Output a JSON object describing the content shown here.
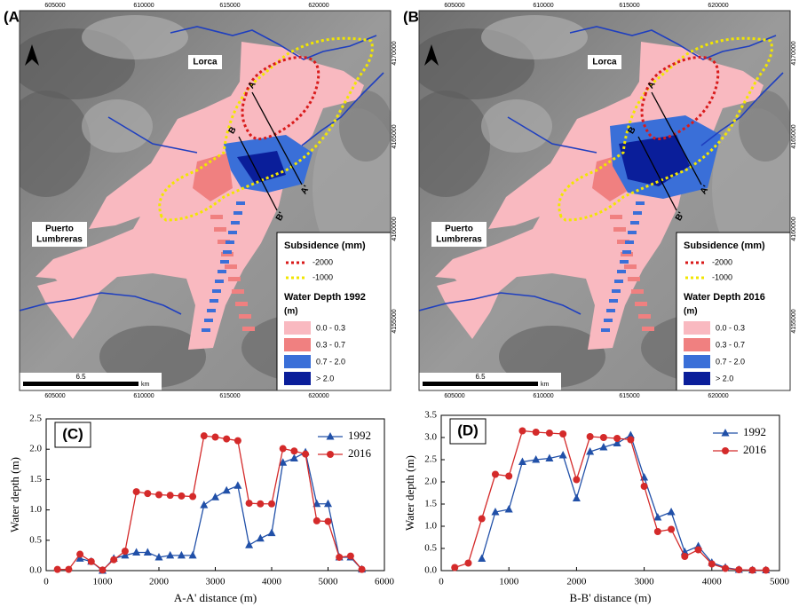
{
  "maps": [
    {
      "label": "(A)",
      "x_coords": [
        "605000",
        "610000",
        "615000",
        "620000"
      ],
      "y_coords": [
        "4170000",
        "4165000",
        "4160000",
        "4155000"
      ],
      "places": {
        "lorca": "Lorca",
        "puerto": [
          "Puerto",
          "Lumbreras"
        ]
      },
      "sections": [
        "A",
        "A'",
        "B",
        "B'"
      ],
      "legend": {
        "subsidence_title": "Subsidence (mm)",
        "subsidence": [
          {
            "label": "-2000",
            "color": "#d91a1a"
          },
          {
            "label": "-1000",
            "color": "#f2e600"
          }
        ],
        "depth_title": "Water Depth 1992",
        "depth_unit": "(m)",
        "classes": [
          {
            "label": "0.0 - 0.3",
            "color": "#f9b9c0"
          },
          {
            "label": "0.3 - 0.7",
            "color": "#f08080"
          },
          {
            "label": "0.7 - 2.0",
            "color": "#3a6fd8"
          },
          {
            "label": "> 2.0",
            "color": "#0a1e9a"
          }
        ]
      },
      "scale": {
        "label": "6.5",
        "unit": "km"
      }
    },
    {
      "label": "(B)",
      "x_coords": [
        "605000",
        "610000",
        "615000",
        "620000"
      ],
      "y_coords": [
        "4170000",
        "4165000",
        "4160000",
        "4155000"
      ],
      "places": {
        "lorca": "Lorca",
        "puerto": [
          "Puerto",
          "Lumbreras"
        ]
      },
      "sections": [
        "A",
        "A'",
        "B",
        "B'"
      ],
      "legend": {
        "subsidence_title": "Subsidence (mm)",
        "subsidence": [
          {
            "label": "-2000",
            "color": "#d91a1a"
          },
          {
            "label": "-1000",
            "color": "#f2e600"
          }
        ],
        "depth_title": "Water Depth 2016",
        "depth_unit": "(m)",
        "classes": [
          {
            "label": "0.0 - 0.3",
            "color": "#f9b9c0"
          },
          {
            "label": "0.3 - 0.7",
            "color": "#f08080"
          },
          {
            "label": "0.7 - 2.0",
            "color": "#3a6fd8"
          },
          {
            "label": "> 2.0",
            "color": "#0a1e9a"
          }
        ]
      },
      "scale": {
        "label": "6.5",
        "unit": "km"
      }
    }
  ],
  "chart_data": [
    {
      "type": "line",
      "label": "(C)",
      "xlabel": "A-A' distance (m)",
      "ylabel": "Water depth (m)",
      "legend": "upper right",
      "xlim": [
        0,
        6000
      ],
      "xticks": [
        0,
        1000,
        2000,
        3000,
        4000,
        5000,
        6000
      ],
      "ylim": [
        0,
        2.5
      ],
      "yticks": [
        {
          "value": 0,
          "label": "0.0"
        },
        0.5,
        {
          "value": 1,
          "label": "1.0"
        },
        1.5,
        {
          "value": 2,
          "label": "2.0"
        },
        2.5
      ],
      "series": [
        {
          "name": "1992",
          "color": "#2150a8",
          "marker": "triangle",
          "x": [
            600,
            800,
            1000,
            1200,
            1400,
            1600,
            1800,
            2000,
            2200,
            2400,
            2600,
            2800,
            3000,
            3200,
            3400,
            3600,
            3800,
            4000,
            4200,
            4400,
            4600,
            4800,
            5000,
            5200,
            5400,
            5600
          ],
          "values": [
            0.2,
            0.15,
            0.0,
            0.2,
            0.25,
            0.3,
            0.3,
            0.22,
            0.25,
            0.25,
            0.25,
            1.08,
            1.21,
            1.32,
            1.4,
            0.42,
            0.53,
            0.62,
            1.78,
            1.85,
            1.95,
            1.1,
            1.1,
            0.22,
            0.22,
            0.02
          ]
        },
        {
          "name": "2016",
          "color": "#d42a2a",
          "marker": "circle",
          "x": [
            200,
            400,
            600,
            800,
            1000,
            1200,
            1400,
            1600,
            1800,
            2000,
            2200,
            2400,
            2600,
            2800,
            3000,
            3200,
            3400,
            3600,
            3800,
            4000,
            4200,
            4400,
            4600,
            4800,
            5000,
            5200,
            5400,
            5600
          ],
          "values": [
            0.02,
            0.02,
            0.27,
            0.15,
            0.01,
            0.18,
            0.32,
            1.3,
            1.27,
            1.25,
            1.24,
            1.23,
            1.22,
            2.22,
            2.2,
            2.17,
            2.14,
            1.11,
            1.1,
            1.1,
            2.01,
            1.97,
            1.92,
            0.82,
            0.81,
            0.22,
            0.24,
            0.02
          ]
        }
      ]
    },
    {
      "type": "line",
      "label": "(D)",
      "xlabel": "B-B' distance (m)",
      "ylabel": "Water depth (m)",
      "legend": "upper right",
      "xlim": [
        0,
        5000
      ],
      "xticks": [
        0,
        1000,
        2000,
        3000,
        4000,
        5000
      ],
      "ylim": [
        0,
        3.5
      ],
      "yticks": [
        {
          "value": 0,
          "label": "0.0"
        },
        0.5,
        {
          "value": 1,
          "label": "1.0"
        },
        1.5,
        {
          "value": 2,
          "label": "2.0"
        },
        2.5,
        {
          "value": 3,
          "label": "3.0"
        },
        3.5
      ],
      "series": [
        {
          "name": "1992",
          "color": "#2150a8",
          "marker": "triangle",
          "x": [
            600,
            800,
            1000,
            1200,
            1400,
            1600,
            1800,
            2000,
            2200,
            2400,
            2600,
            2800,
            3000,
            3200,
            3400,
            3600,
            3800,
            4000,
            4200,
            4400,
            4600,
            4800
          ],
          "values": [
            0.27,
            1.32,
            1.38,
            2.45,
            2.5,
            2.53,
            2.6,
            1.63,
            2.68,
            2.78,
            2.87,
            3.05,
            2.1,
            1.2,
            1.32,
            0.42,
            0.55,
            0.18,
            0.07,
            0.02,
            0.01,
            0.01
          ]
        },
        {
          "name": "2016",
          "color": "#d42a2a",
          "marker": "circle",
          "x": [
            200,
            400,
            600,
            800,
            1000,
            1200,
            1400,
            1600,
            1800,
            2000,
            2200,
            2400,
            2600,
            2800,
            3000,
            3200,
            3400,
            3600,
            3800,
            4000,
            4200,
            4400,
            4600,
            4800
          ],
          "values": [
            0.07,
            0.17,
            1.17,
            2.17,
            2.13,
            3.15,
            3.12,
            3.1,
            3.08,
            2.05,
            3.02,
            3.0,
            2.98,
            2.95,
            1.9,
            0.88,
            0.93,
            0.32,
            0.47,
            0.15,
            0.05,
            0.02,
            0.01,
            0.01
          ]
        }
      ]
    }
  ]
}
